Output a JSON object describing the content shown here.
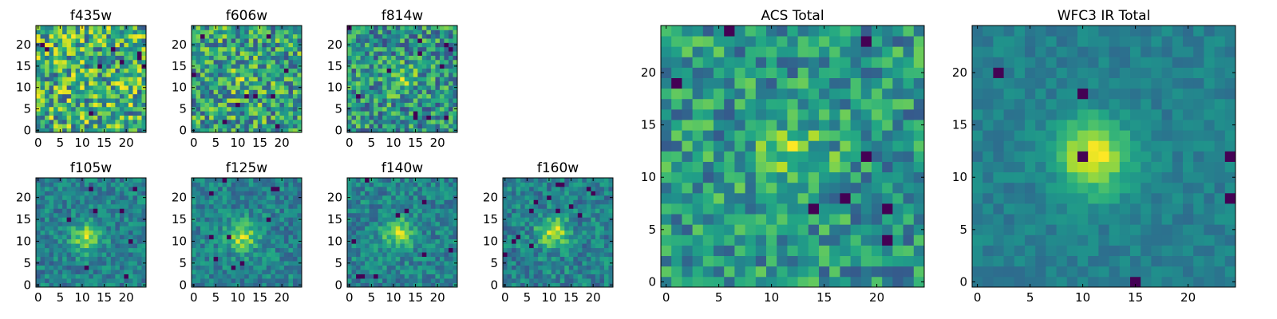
{
  "figure": {
    "background": "#ffffff",
    "colormap": "viridis"
  },
  "chart_data": [
    {
      "type": "heatmap",
      "title": "f435w",
      "image_size": 25,
      "xticks": [
        0,
        5,
        10,
        15,
        20
      ],
      "yticks": [
        0,
        5,
        10,
        15,
        20
      ],
      "xlim": [
        -0.5,
        24.5
      ],
      "ylim": [
        -0.5,
        24.5
      ],
      "seed": 11,
      "source_center": null,
      "source_amplitude": 0.0,
      "noise": 0.5,
      "base": 0.62,
      "dark_pixels": 9
    },
    {
      "type": "heatmap",
      "title": "f606w",
      "image_size": 25,
      "xticks": [
        0,
        5,
        10,
        15,
        20
      ],
      "yticks": [
        0,
        5,
        10,
        15,
        20
      ],
      "xlim": [
        -0.5,
        24.5
      ],
      "ylim": [
        -0.5,
        24.5
      ],
      "seed": 23,
      "source_center": [
        11,
        12
      ],
      "source_amplitude": 0.15,
      "noise": 0.5,
      "base": 0.55,
      "dark_pixels": 10
    },
    {
      "type": "heatmap",
      "title": "f814w",
      "image_size": 25,
      "xticks": [
        0,
        5,
        10,
        15,
        20
      ],
      "yticks": [
        0,
        5,
        10,
        15,
        20
      ],
      "xlim": [
        -0.5,
        24.5
      ],
      "ylim": [
        -0.5,
        24.5
      ],
      "seed": 37,
      "source_center": [
        12,
        12
      ],
      "source_amplitude": 0.25,
      "noise": 0.5,
      "base": 0.55,
      "dark_pixels": 12
    },
    {
      "type": "heatmap",
      "title": "f105w",
      "image_size": 25,
      "xticks": [
        0,
        5,
        10,
        15,
        20
      ],
      "yticks": [
        0,
        5,
        10,
        15,
        20
      ],
      "xlim": [
        -0.5,
        24.5
      ],
      "ylim": [
        -0.5,
        24.5
      ],
      "seed": 41,
      "source_center": [
        11,
        11
      ],
      "source_amplitude": 0.55,
      "noise": 0.32,
      "base": 0.45,
      "dark_pixels": 8
    },
    {
      "type": "heatmap",
      "title": "f125w",
      "image_size": 25,
      "xticks": [
        0,
        5,
        10,
        15,
        20
      ],
      "yticks": [
        0,
        5,
        10,
        15,
        20
      ],
      "xlim": [
        -0.5,
        24.5
      ],
      "ylim": [
        -0.5,
        24.5
      ],
      "seed": 53,
      "source_center": [
        11,
        11
      ],
      "source_amplitude": 0.55,
      "noise": 0.32,
      "base": 0.45,
      "dark_pixels": 10
    },
    {
      "type": "heatmap",
      "title": "f140w",
      "image_size": 25,
      "xticks": [
        0,
        5,
        10,
        15,
        20
      ],
      "yticks": [
        0,
        5,
        10,
        15,
        20
      ],
      "xlim": [
        -0.5,
        24.5
      ],
      "ylim": [
        -0.5,
        24.5
      ],
      "seed": 67,
      "source_center": [
        11,
        12
      ],
      "source_amplitude": 0.55,
      "noise": 0.32,
      "base": 0.45,
      "dark_pixels": 10
    },
    {
      "type": "heatmap",
      "title": "f160w",
      "image_size": 25,
      "xticks": [
        0,
        5,
        10,
        15,
        20
      ],
      "yticks": [
        0,
        5,
        10,
        15,
        20
      ],
      "xlim": [
        -0.5,
        24.5
      ],
      "ylim": [
        -0.5,
        24.5
      ],
      "seed": 79,
      "source_center": [
        11,
        12
      ],
      "source_amplitude": 0.6,
      "noise": 0.35,
      "base": 0.42,
      "dark_pixels": 14
    },
    {
      "type": "heatmap",
      "title": "ACS Total",
      "image_size": 25,
      "xticks": [
        0,
        5,
        10,
        15,
        20
      ],
      "yticks": [
        0,
        5,
        10,
        15,
        20
      ],
      "xlim": [
        -0.5,
        24.5
      ],
      "ylim": [
        -0.5,
        24.5
      ],
      "seed": 83,
      "source_center": [
        12,
        12
      ],
      "source_amplitude": 0.3,
      "noise": 0.4,
      "base": 0.6,
      "dark_pixels": 8
    },
    {
      "type": "heatmap",
      "title": "WFC3 IR Total",
      "image_size": 25,
      "xticks": [
        0,
        5,
        10,
        15,
        20
      ],
      "yticks": [
        0,
        5,
        10,
        15,
        20
      ],
      "xlim": [
        -0.5,
        24.5
      ],
      "ylim": [
        -0.5,
        24.5
      ],
      "seed": 97,
      "source_center": [
        11,
        12
      ],
      "source_amplitude": 0.75,
      "noise": 0.16,
      "base": 0.42,
      "dark_pixels": 6
    }
  ]
}
